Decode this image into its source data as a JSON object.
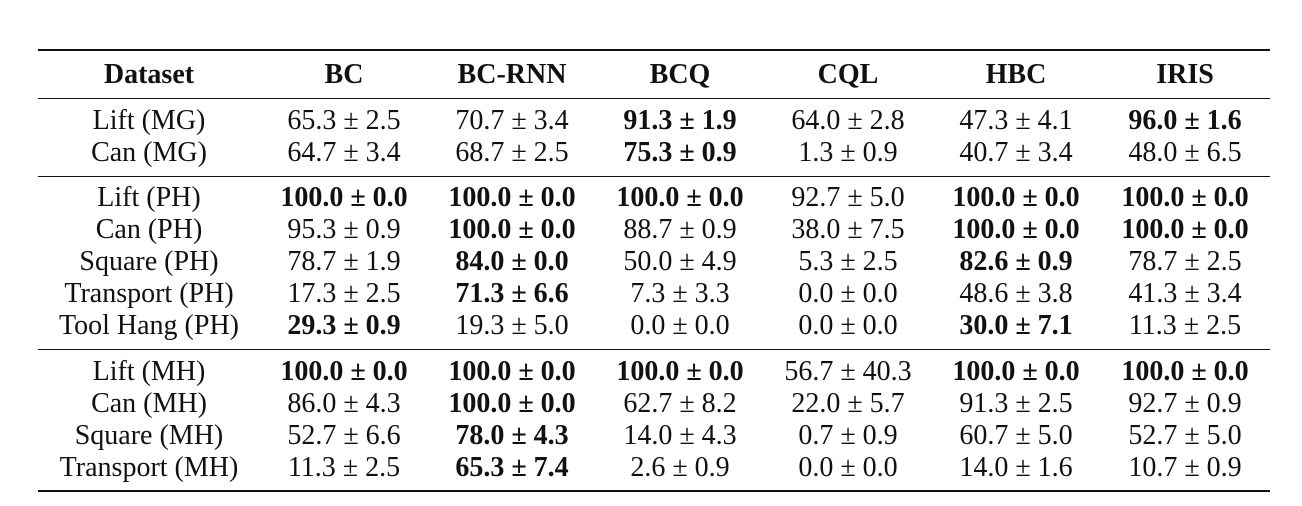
{
  "table": {
    "columns": [
      "Dataset",
      "BC",
      "BC-RNN",
      "BCQ",
      "CQL",
      "HBC",
      "IRIS"
    ],
    "groups": [
      {
        "rows": [
          {
            "dataset": "Lift (MG)",
            "cells": [
              {
                "text": "65.3 ± 2.5",
                "bold": false
              },
              {
                "text": "70.7 ± 3.4",
                "bold": false
              },
              {
                "text": "91.3 ± 1.9",
                "bold": true
              },
              {
                "text": "64.0 ± 2.8",
                "bold": false
              },
              {
                "text": "47.3 ± 4.1",
                "bold": false
              },
              {
                "text": "96.0 ± 1.6",
                "bold": true
              }
            ]
          },
          {
            "dataset": "Can (MG)",
            "cells": [
              {
                "text": "64.7 ± 3.4",
                "bold": false
              },
              {
                "text": "68.7 ± 2.5",
                "bold": false
              },
              {
                "text": "75.3 ± 0.9",
                "bold": true
              },
              {
                "text": "1.3 ± 0.9",
                "bold": false
              },
              {
                "text": "40.7 ± 3.4",
                "bold": false
              },
              {
                "text": "48.0 ± 6.5",
                "bold": false
              }
            ]
          }
        ]
      },
      {
        "rows": [
          {
            "dataset": "Lift (PH)",
            "cells": [
              {
                "text": "100.0 ± 0.0",
                "bold": true
              },
              {
                "text": "100.0 ± 0.0",
                "bold": true
              },
              {
                "text": "100.0 ± 0.0",
                "bold": true
              },
              {
                "text": "92.7 ± 5.0",
                "bold": false
              },
              {
                "text": "100.0 ± 0.0",
                "bold": true
              },
              {
                "text": "100.0 ± 0.0",
                "bold": true
              }
            ]
          },
          {
            "dataset": "Can (PH)",
            "cells": [
              {
                "text": "95.3 ± 0.9",
                "bold": false
              },
              {
                "text": "100.0 ± 0.0",
                "bold": true
              },
              {
                "text": "88.7 ± 0.9",
                "bold": false
              },
              {
                "text": "38.0 ± 7.5",
                "bold": false
              },
              {
                "text": "100.0 ± 0.0",
                "bold": true
              },
              {
                "text": "100.0 ± 0.0",
                "bold": true
              }
            ]
          },
          {
            "dataset": "Square (PH)",
            "cells": [
              {
                "text": "78.7 ± 1.9",
                "bold": false
              },
              {
                "text": "84.0 ± 0.0",
                "bold": true
              },
              {
                "text": "50.0 ± 4.9",
                "bold": false
              },
              {
                "text": "5.3 ± 2.5",
                "bold": false
              },
              {
                "text": "82.6 ± 0.9",
                "bold": true
              },
              {
                "text": "78.7 ± 2.5",
                "bold": false
              }
            ]
          },
          {
            "dataset": "Transport (PH)",
            "cells": [
              {
                "text": "17.3 ± 2.5",
                "bold": false
              },
              {
                "text": "71.3 ± 6.6",
                "bold": true
              },
              {
                "text": "7.3 ± 3.3",
                "bold": false
              },
              {
                "text": "0.0 ± 0.0",
                "bold": false
              },
              {
                "text": "48.6 ± 3.8",
                "bold": false
              },
              {
                "text": "41.3 ± 3.4",
                "bold": false
              }
            ]
          },
          {
            "dataset": "Tool Hang (PH)",
            "cells": [
              {
                "text": "29.3 ± 0.9",
                "bold": true
              },
              {
                "text": "19.3 ± 5.0",
                "bold": false
              },
              {
                "text": "0.0 ± 0.0",
                "bold": false
              },
              {
                "text": "0.0 ± 0.0",
                "bold": false
              },
              {
                "text": "30.0 ± 7.1",
                "bold": true
              },
              {
                "text": "11.3 ± 2.5",
                "bold": false
              }
            ]
          }
        ]
      },
      {
        "rows": [
          {
            "dataset": "Lift (MH)",
            "cells": [
              {
                "text": "100.0 ± 0.0",
                "bold": true
              },
              {
                "text": "100.0 ± 0.0",
                "bold": true
              },
              {
                "text": "100.0 ± 0.0",
                "bold": true
              },
              {
                "text": "56.7 ± 40.3",
                "bold": false
              },
              {
                "text": "100.0 ± 0.0",
                "bold": true
              },
              {
                "text": "100.0 ± 0.0",
                "bold": true
              }
            ]
          },
          {
            "dataset": "Can (MH)",
            "cells": [
              {
                "text": "86.0 ± 4.3",
                "bold": false
              },
              {
                "text": "100.0 ± 0.0",
                "bold": true
              },
              {
                "text": "62.7 ± 8.2",
                "bold": false
              },
              {
                "text": "22.0 ± 5.7",
                "bold": false
              },
              {
                "text": "91.3 ± 2.5",
                "bold": false
              },
              {
                "text": "92.7 ± 0.9",
                "bold": false
              }
            ]
          },
          {
            "dataset": "Square (MH)",
            "cells": [
              {
                "text": "52.7 ± 6.6",
                "bold": false
              },
              {
                "text": "78.0 ± 4.3",
                "bold": true
              },
              {
                "text": "14.0 ± 4.3",
                "bold": false
              },
              {
                "text": "0.7 ± 0.9",
                "bold": false
              },
              {
                "text": "60.7 ± 5.0",
                "bold": false
              },
              {
                "text": "52.7 ± 5.0",
                "bold": false
              }
            ]
          },
          {
            "dataset": "Transport (MH)",
            "cells": [
              {
                "text": "11.3 ± 2.5",
                "bold": false
              },
              {
                "text": "65.3 ± 7.4",
                "bold": true
              },
              {
                "text": "2.6 ± 0.9",
                "bold": false
              },
              {
                "text": "0.0 ± 0.0",
                "bold": false
              },
              {
                "text": "14.0 ± 1.6",
                "bold": false
              },
              {
                "text": "10.7 ± 0.9",
                "bold": false
              }
            ]
          }
        ]
      }
    ]
  }
}
